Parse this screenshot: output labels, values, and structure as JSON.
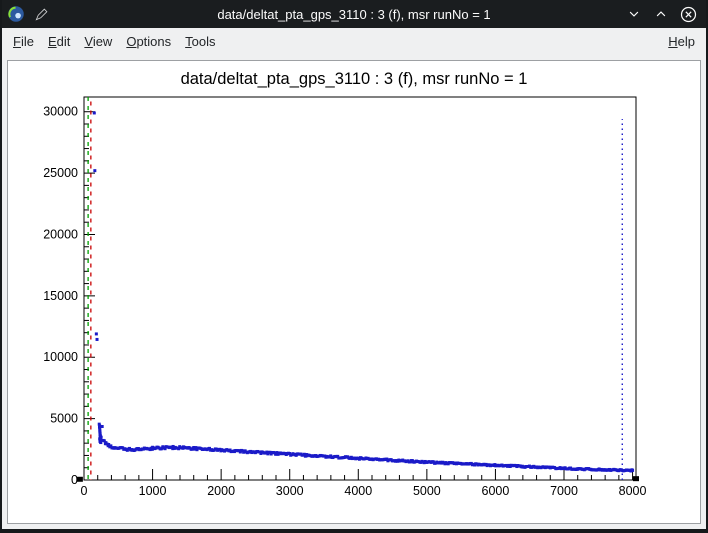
{
  "titlebar": {
    "title": "data/deltat_pta_gps_3110 : 3 (f), msr runNo = 1"
  },
  "menubar": {
    "items": [
      {
        "label": "File"
      },
      {
        "label": "Edit"
      },
      {
        "label": "View"
      },
      {
        "label": "Options"
      },
      {
        "label": "Tools"
      }
    ],
    "right_items": [
      {
        "label": "Help"
      }
    ]
  },
  "chart_data": {
    "type": "scatter",
    "title": "data/deltat_pta_gps_3110 : 3 (f), msr runNo = 1",
    "xlim": [
      0,
      8050
    ],
    "ylim": [
      0,
      31200
    ],
    "x_tick_labels": [
      0,
      1000,
      2000,
      3000,
      4000,
      5000,
      6000,
      7000,
      8000
    ],
    "x_minor_step": 200,
    "y_tick_labels": [
      0,
      5000,
      10000,
      15000,
      20000,
      25000,
      30000
    ],
    "y_minor_step": 1000,
    "grid": false,
    "legend": "none",
    "background": "#ffffff",
    "axis_color": "#000000",
    "marker_color": "#1a1ac8",
    "marker_size": 3,
    "outlier_points": [
      [
        150,
        29900
      ],
      [
        158,
        25200
      ],
      [
        180,
        11900
      ],
      [
        190,
        11450
      ]
    ],
    "start_cluster_points": [
      [
        222,
        4550
      ],
      [
        226,
        4300
      ],
      [
        228,
        4420
      ],
      [
        229,
        3350
      ],
      [
        230,
        4150
      ],
      [
        231,
        4000
      ],
      [
        232,
        3900
      ],
      [
        233,
        3150
      ],
      [
        234,
        3700
      ],
      [
        235,
        3800
      ],
      [
        236,
        3550
      ],
      [
        237,
        3250
      ],
      [
        238,
        3400
      ],
      [
        239,
        3600
      ],
      [
        240,
        3300
      ],
      [
        241,
        3100
      ],
      [
        242,
        3250
      ],
      [
        243,
        3450
      ],
      [
        245,
        3050
      ]
    ],
    "decay_anchors": [
      [
        250,
        3500
      ],
      [
        265,
        4250
      ],
      [
        280,
        3250
      ],
      [
        320,
        2950
      ],
      [
        360,
        2800
      ],
      [
        420,
        2680
      ],
      [
        500,
        2580
      ],
      [
        600,
        2510
      ],
      [
        700,
        2480
      ],
      [
        800,
        2500
      ],
      [
        900,
        2540
      ],
      [
        1000,
        2580
      ],
      [
        1150,
        2620
      ],
      [
        1300,
        2640
      ],
      [
        1450,
        2620
      ],
      [
        1600,
        2570
      ],
      [
        1750,
        2520
      ],
      [
        1900,
        2470
      ],
      [
        2050,
        2410
      ],
      [
        2200,
        2360
      ],
      [
        2350,
        2310
      ],
      [
        2500,
        2260
      ],
      [
        2650,
        2210
      ],
      [
        2800,
        2160
      ],
      [
        2950,
        2110
      ],
      [
        3100,
        2060
      ],
      [
        3250,
        2010
      ],
      [
        3400,
        1960
      ],
      [
        3550,
        1910
      ],
      [
        3700,
        1860
      ],
      [
        3850,
        1810
      ],
      [
        4000,
        1760
      ],
      [
        4200,
        1700
      ],
      [
        4400,
        1640
      ],
      [
        4600,
        1580
      ],
      [
        4800,
        1520
      ],
      [
        5000,
        1460
      ],
      [
        5200,
        1400
      ],
      [
        5400,
        1350
      ],
      [
        5600,
        1300
      ],
      [
        5800,
        1250
      ],
      [
        6000,
        1200
      ],
      [
        6200,
        1150
      ],
      [
        6400,
        1100
      ],
      [
        6600,
        1050
      ],
      [
        6800,
        1000
      ],
      [
        7000,
        950
      ],
      [
        7200,
        910
      ],
      [
        7400,
        870
      ],
      [
        7600,
        830
      ],
      [
        7800,
        800
      ],
      [
        8000,
        780
      ]
    ],
    "marker_x_step": 16,
    "vline_dotted_blue": {
      "x": 7850,
      "y_top": 29400,
      "color": "#1a1ac8"
    },
    "vline_dashed_green": {
      "x": 60,
      "color": "#00a000"
    },
    "vline_dashed_red": {
      "x": 100,
      "color": "#c80000"
    },
    "corner_marks": [
      [
        -60,
        100
      ],
      [
        8050,
        150
      ]
    ]
  }
}
